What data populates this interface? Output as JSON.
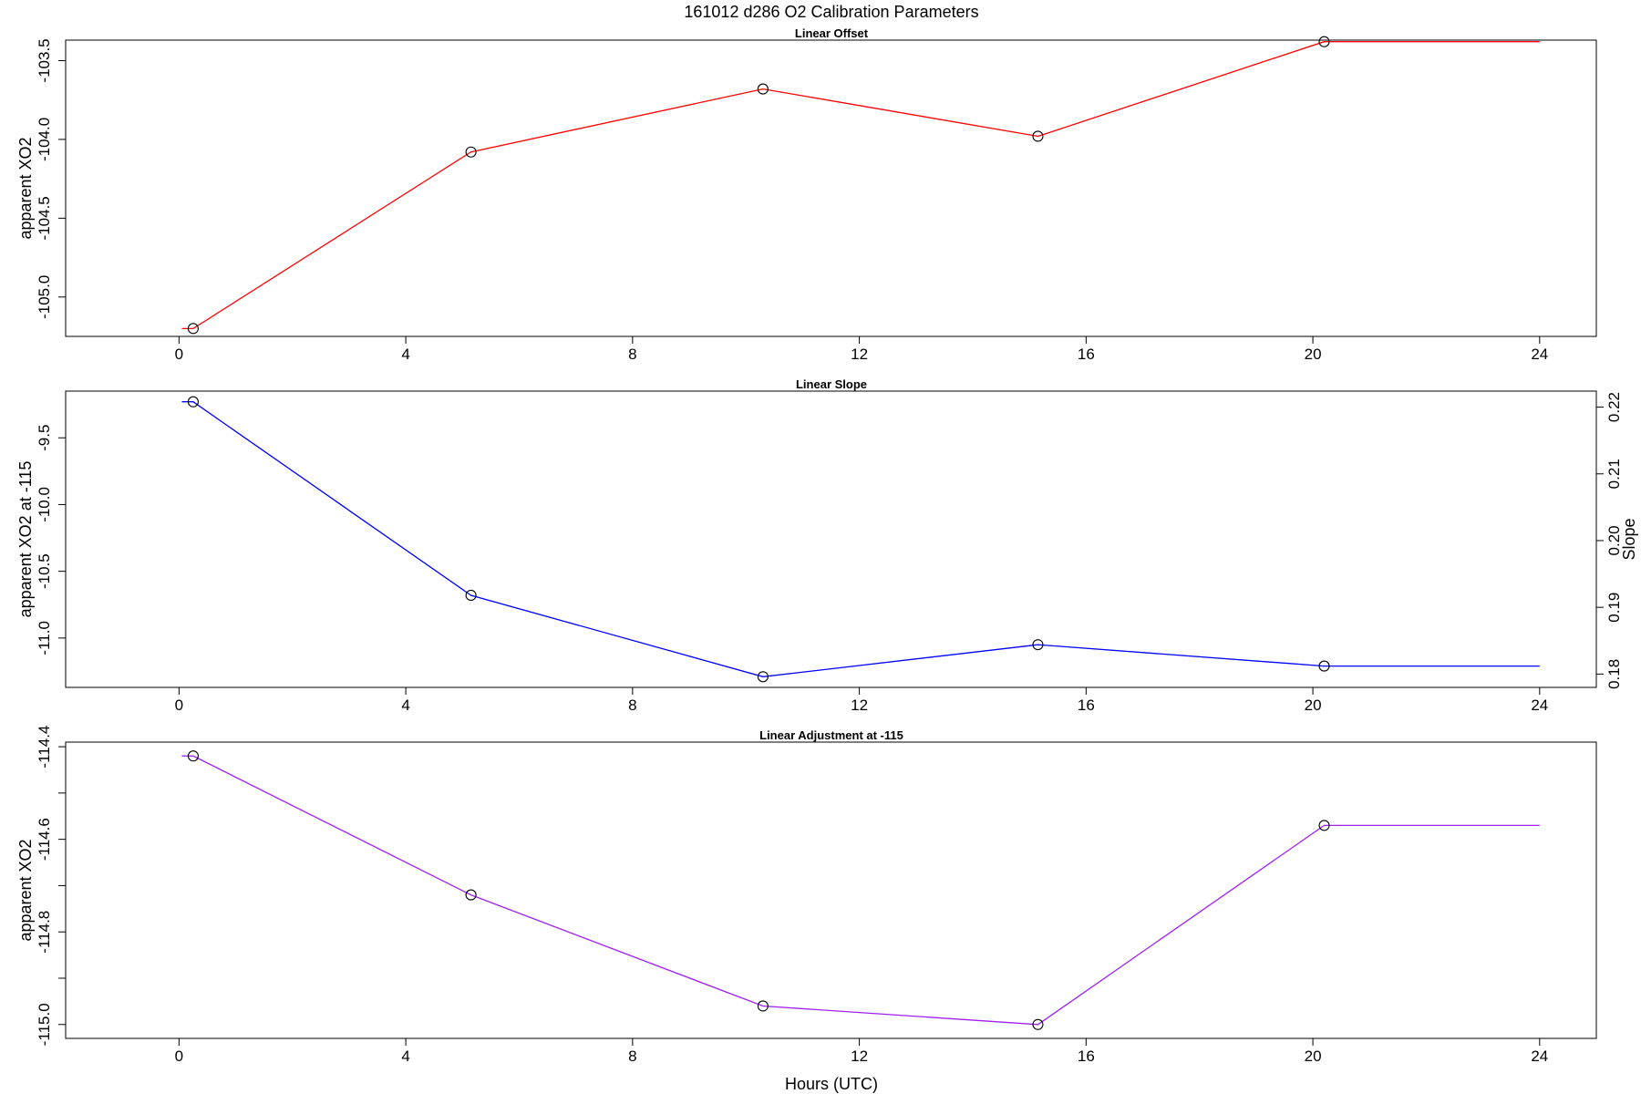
{
  "figure": {
    "title": "161012   d286   O2 Calibration Parameters",
    "xlabel": "Hours (UTC)"
  },
  "chart_data": [
    {
      "type": "line",
      "title": "Linear Offset",
      "xlabel": "",
      "ylabel": "apparent XO2",
      "color": "#ff0000",
      "xlim": [
        -2.0,
        25.0
      ],
      "ylim": [
        -105.25,
        -103.37
      ],
      "x_ticks": [
        0,
        4,
        8,
        12,
        16,
        20,
        24
      ],
      "x_tick_labels": [
        "0",
        "4",
        "8",
        "12",
        "16",
        "20",
        "24"
      ],
      "y_ticks": [
        -105.0,
        -104.5,
        -104.0,
        -103.5
      ],
      "y_tick_labels": [
        "-105.0",
        "-104.5",
        "-104.0",
        "-103.5"
      ],
      "y_minor_ticks": [],
      "line_x": [
        0.05,
        0.25,
        5.15,
        10.3,
        15.15,
        20.2,
        24.0
      ],
      "line_y": [
        -105.2,
        -105.2,
        -104.08,
        -103.68,
        -103.98,
        -103.38,
        -103.38
      ],
      "points_x": [
        0.25,
        5.15,
        10.3,
        15.15,
        20.2
      ],
      "points_y": [
        -105.2,
        -104.08,
        -103.68,
        -103.98,
        -103.38
      ]
    },
    {
      "type": "line",
      "title": "Linear Slope",
      "xlabel": "",
      "ylabel": "apparent XO2 at -115",
      "color": "#0000ff",
      "xlim": [
        -2.0,
        25.0
      ],
      "ylim": [
        -11.37,
        -9.15
      ],
      "x_ticks": [
        0,
        4,
        8,
        12,
        16,
        20,
        24
      ],
      "x_tick_labels": [
        "0",
        "4",
        "8",
        "12",
        "16",
        "20",
        "24"
      ],
      "y_ticks": [
        -11.0,
        -10.5,
        -10.0,
        -9.5
      ],
      "y_tick_labels": [
        "-11.0",
        "-10.5",
        "-10.0",
        "-9.5"
      ],
      "y_minor_ticks": [],
      "y2label": "Slope",
      "y2lim": [
        0.178,
        0.2224
      ],
      "y2_ticks": [
        0.18,
        0.19,
        0.2,
        0.21,
        0.22
      ],
      "y2_tick_labels": [
        "0.18",
        "0.19",
        "0.20",
        "0.21",
        "0.22"
      ],
      "line_x": [
        0.05,
        0.25,
        5.15,
        10.3,
        15.15,
        20.2,
        24.0
      ],
      "line_y": [
        -9.23,
        -9.23,
        -10.68,
        -11.29,
        -11.05,
        -11.21,
        -11.21
      ],
      "points_x": [
        0.25,
        5.15,
        10.3,
        15.15,
        20.2
      ],
      "points_y": [
        -9.23,
        -10.68,
        -11.29,
        -11.05,
        -11.21
      ]
    },
    {
      "type": "line",
      "title": "Linear Adjustment at -115",
      "xlabel": "Hours (UTC)",
      "ylabel": "apparent XO2",
      "color": "#a020f0",
      "xlim": [
        -2.0,
        25.0
      ],
      "ylim": [
        -115.03,
        -114.39
      ],
      "x_ticks": [
        0,
        4,
        8,
        12,
        16,
        20,
        24
      ],
      "x_tick_labels": [
        "0",
        "4",
        "8",
        "12",
        "16",
        "20",
        "24"
      ],
      "y_ticks": [
        -115.0,
        -114.8,
        -114.6,
        -114.4
      ],
      "y_tick_labels": [
        "-115.0",
        "-114.8",
        "-114.6",
        "-114.4"
      ],
      "y_minor_ticks": [
        -114.9,
        -114.7,
        -114.5
      ],
      "line_x": [
        0.05,
        0.25,
        5.15,
        10.3,
        15.15,
        20.2,
        24.0
      ],
      "line_y": [
        -114.42,
        -114.42,
        -114.72,
        -114.96,
        -115.0,
        -114.57,
        -114.57
      ],
      "points_x": [
        0.25,
        5.15,
        10.3,
        15.15,
        20.2
      ],
      "points_y": [
        -114.42,
        -114.72,
        -114.96,
        -115.0,
        -114.57
      ]
    }
  ]
}
